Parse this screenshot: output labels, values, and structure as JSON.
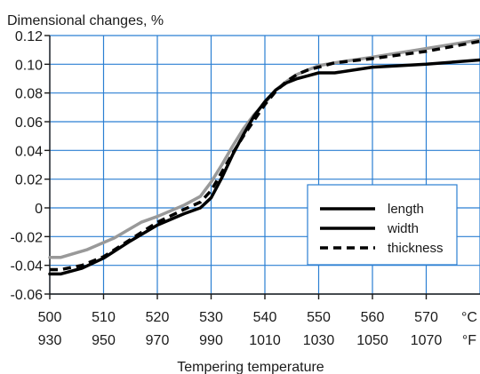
{
  "chart_data": {
    "type": "line",
    "title": "Dimensional changes, %",
    "xlabel": "Tempering temperature",
    "ylabel": "",
    "xlim": [
      500,
      580
    ],
    "ylim": [
      -0.06,
      0.12
    ],
    "x_ticks": [
      500,
      510,
      520,
      530,
      540,
      550,
      560,
      570
    ],
    "x_ticks_f": [
      "930",
      "950",
      "970",
      "990",
      "1010",
      "1030",
      "1050",
      "1070"
    ],
    "x_unit_c": "°C",
    "x_unit_f": "°F",
    "y_ticks": [
      {
        "value": 0.12,
        "label": "0.12"
      },
      {
        "value": 0.1,
        "label": "0.10"
      },
      {
        "value": 0.08,
        "label": "0.08"
      },
      {
        "value": 0.06,
        "label": "0.06"
      },
      {
        "value": 0.04,
        "label": "0.04"
      },
      {
        "value": 0.02,
        "label": "0.02"
      },
      {
        "value": 0.0,
        "label": "0"
      },
      {
        "value": -0.02,
        "label": "-0.02"
      },
      {
        "value": -0.04,
        "label": "-0.04"
      },
      {
        "value": -0.06,
        "label": "-0.06"
      }
    ],
    "grid": true,
    "grid_color": "#2b7fd3",
    "legend_position": "lower-right",
    "series": [
      {
        "name": "length",
        "color": "#999999",
        "style": "solid",
        "x": [
          500,
          502,
          507,
          512,
          517,
          520,
          525,
          528,
          530,
          532,
          534,
          536,
          538,
          540,
          542,
          544,
          546,
          548,
          550,
          553,
          560,
          570,
          580
        ],
        "y": [
          -0.0345,
          -0.0345,
          -0.029,
          -0.021,
          -0.01,
          -0.006,
          0.002,
          0.008,
          0.018,
          0.03,
          0.043,
          0.055,
          0.065,
          0.073,
          0.082,
          0.088,
          0.093,
          0.096,
          0.099,
          0.101,
          0.105,
          0.111,
          0.117
        ]
      },
      {
        "name": "width",
        "color": "#000000",
        "style": "solid",
        "x": [
          500,
          502,
          506,
          510,
          515,
          520,
          525,
          528,
          530,
          532,
          534,
          536,
          538,
          540,
          542,
          544,
          546,
          548,
          550,
          553,
          560,
          570,
          580
        ],
        "y": [
          -0.046,
          -0.046,
          -0.042,
          -0.035,
          -0.023,
          -0.012,
          -0.004,
          0.0,
          0.007,
          0.021,
          0.037,
          0.051,
          0.064,
          0.074,
          0.082,
          0.087,
          0.09,
          0.092,
          0.094,
          0.094,
          0.098,
          0.1,
          0.103
        ]
      },
      {
        "name": "thickness",
        "color": "#000000",
        "style": "dashed",
        "x": [
          500,
          502,
          506,
          510,
          515,
          520,
          525,
          528,
          530,
          532,
          534,
          536,
          538,
          540,
          542,
          544,
          546,
          548,
          550,
          553,
          560,
          570,
          580
        ],
        "y": [
          -0.043,
          -0.043,
          -0.04,
          -0.034,
          -0.022,
          -0.01,
          -0.001,
          0.004,
          0.012,
          0.025,
          0.038,
          0.05,
          0.061,
          0.072,
          0.081,
          0.088,
          0.093,
          0.096,
          0.098,
          0.101,
          0.104,
          0.109,
          0.116
        ]
      }
    ]
  }
}
